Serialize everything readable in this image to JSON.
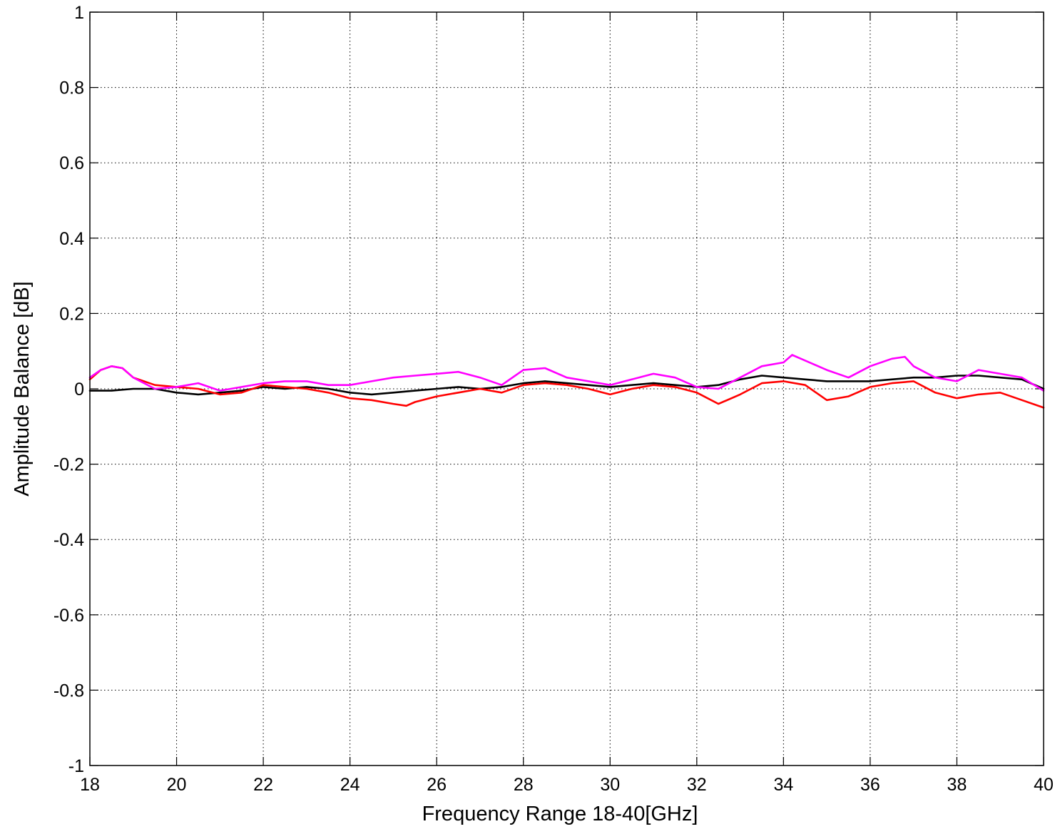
{
  "chart_data": {
    "type": "line",
    "title": "",
    "xlabel": "Frequency Range 18-40[GHz]",
    "ylabel": "Amplitude Balance [dB]",
    "xlim": [
      18,
      40
    ],
    "ylim": [
      -1,
      1
    ],
    "xticks": [
      18,
      20,
      22,
      24,
      26,
      28,
      30,
      32,
      34,
      36,
      38,
      40
    ],
    "yticks": [
      -1,
      -0.8,
      -0.6,
      -0.4,
      -0.2,
      0,
      0.2,
      0.4,
      0.6,
      0.8,
      1
    ],
    "xtick_labels": [
      "18",
      "20",
      "22",
      "24",
      "26",
      "28",
      "30",
      "32",
      "34",
      "36",
      "38",
      "40"
    ],
    "ytick_labels": [
      "-1",
      "-0.8",
      "-0.6",
      "-0.4",
      "-0.2",
      "0",
      "0.2",
      "0.4",
      "0.6",
      "0.8",
      "1"
    ],
    "grid": true,
    "legend": "none",
    "series": [
      {
        "color": "#000000",
        "x": [
          18.0,
          18.5,
          19.0,
          19.5,
          20.0,
          20.5,
          21.0,
          21.5,
          22.0,
          22.5,
          23.0,
          23.5,
          24.0,
          24.5,
          25.0,
          25.5,
          26.0,
          26.5,
          27.0,
          27.5,
          28.0,
          28.5,
          29.0,
          29.5,
          30.0,
          30.5,
          31.0,
          31.5,
          32.0,
          32.5,
          33.0,
          33.5,
          34.0,
          34.5,
          35.0,
          35.5,
          36.0,
          36.5,
          37.0,
          37.5,
          38.0,
          38.5,
          39.0,
          39.5,
          40.0
        ],
        "y": [
          -0.005,
          -0.005,
          0.0,
          0.0,
          -0.01,
          -0.015,
          -0.01,
          -0.005,
          0.005,
          0.0,
          0.005,
          0.0,
          -0.01,
          -0.015,
          -0.01,
          -0.005,
          0.0,
          0.005,
          0.0,
          0.005,
          0.015,
          0.02,
          0.015,
          0.01,
          0.005,
          0.01,
          0.015,
          0.01,
          0.005,
          0.01,
          0.025,
          0.035,
          0.03,
          0.025,
          0.02,
          0.02,
          0.02,
          0.025,
          0.03,
          0.03,
          0.035,
          0.035,
          0.03,
          0.025,
          0.0
        ]
      },
      {
        "color": "#ff0000",
        "x": [
          18.0,
          18.25,
          18.5,
          18.75,
          19.0,
          19.5,
          20.0,
          20.5,
          21.0,
          21.5,
          22.0,
          22.5,
          23.0,
          23.5,
          24.0,
          24.5,
          25.0,
          25.3,
          25.5,
          26.0,
          26.5,
          27.0,
          27.5,
          28.0,
          28.5,
          29.0,
          29.5,
          30.0,
          30.5,
          31.0,
          31.5,
          32.0,
          32.5,
          33.0,
          33.5,
          34.0,
          34.5,
          35.0,
          35.5,
          36.0,
          36.5,
          37.0,
          37.5,
          38.0,
          38.5,
          39.0,
          39.5,
          40.0
        ],
        "y": [
          0.025,
          0.05,
          0.06,
          0.055,
          0.03,
          0.01,
          0.005,
          0.0,
          -0.015,
          -0.01,
          0.01,
          0.005,
          0.0,
          -0.01,
          -0.025,
          -0.03,
          -0.04,
          -0.045,
          -0.035,
          -0.02,
          -0.01,
          0.0,
          -0.01,
          0.01,
          0.015,
          0.01,
          0.0,
          -0.015,
          0.0,
          0.01,
          0.005,
          -0.01,
          -0.04,
          -0.015,
          0.015,
          0.02,
          0.01,
          -0.03,
          -0.02,
          0.005,
          0.015,
          0.02,
          -0.01,
          -0.025,
          -0.015,
          -0.01,
          -0.03,
          -0.05
        ]
      },
      {
        "color": "#ff00ff",
        "x": [
          18.0,
          18.25,
          18.5,
          18.75,
          19.0,
          19.5,
          20.0,
          20.5,
          21.0,
          21.5,
          22.0,
          22.5,
          23.0,
          23.5,
          24.0,
          24.5,
          25.0,
          25.5,
          26.0,
          26.5,
          27.0,
          27.5,
          28.0,
          28.5,
          29.0,
          29.5,
          30.0,
          30.5,
          31.0,
          31.5,
          32.0,
          32.5,
          33.0,
          33.5,
          34.0,
          34.2,
          34.5,
          35.0,
          35.5,
          36.0,
          36.5,
          36.8,
          37.0,
          37.5,
          38.0,
          38.5,
          39.0,
          39.5,
          40.0
        ],
        "y": [
          0.03,
          0.05,
          0.06,
          0.055,
          0.03,
          0.0,
          0.005,
          0.015,
          -0.005,
          0.005,
          0.015,
          0.02,
          0.02,
          0.01,
          0.01,
          0.02,
          0.03,
          0.035,
          0.04,
          0.045,
          0.03,
          0.01,
          0.05,
          0.055,
          0.03,
          0.02,
          0.01,
          0.025,
          0.04,
          0.03,
          0.005,
          0.0,
          0.03,
          0.06,
          0.07,
          0.09,
          0.075,
          0.05,
          0.03,
          0.06,
          0.08,
          0.085,
          0.06,
          0.03,
          0.02,
          0.05,
          0.04,
          0.03,
          -0.005
        ]
      }
    ]
  }
}
